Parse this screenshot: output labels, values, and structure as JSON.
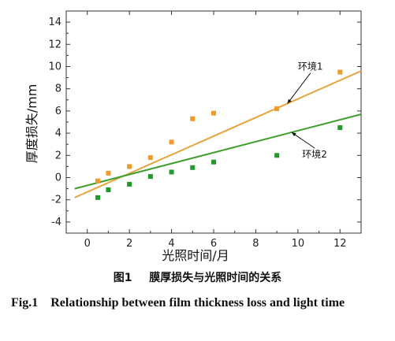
{
  "chart_data": {
    "type": "scatter",
    "xlabel": "光照时间/月",
    "ylabel": "厚度损失/mm",
    "xlim": [
      -1,
      13
    ],
    "ylim": [
      -5,
      15
    ],
    "xticks": [
      0,
      2,
      4,
      6,
      8,
      10,
      12
    ],
    "yticks": [
      -4,
      -2,
      0,
      2,
      4,
      6,
      8,
      10,
      12,
      14
    ],
    "grid": false,
    "series": [
      {
        "name": "环境1",
        "color": "#f29a27",
        "line_color": "#e8a33a",
        "x": [
          0.5,
          1,
          2,
          3,
          4,
          5,
          6,
          9,
          12
        ],
        "y": [
          -0.3,
          0.4,
          1.0,
          1.8,
          3.2,
          5.3,
          5.8,
          6.2,
          9.5
        ],
        "fit": [
          [
            -0.6,
            -1.8
          ],
          [
            13,
            9.6
          ]
        ],
        "label_x": 10.0,
        "label_y": 9.7
      },
      {
        "name": "环境2",
        "color": "#1f9a2b",
        "line_color": "#3f9f2c",
        "x": [
          0.5,
          1,
          2,
          3,
          4,
          5,
          6,
          9,
          12
        ],
        "y": [
          -1.8,
          -1.1,
          -0.6,
          0.1,
          0.5,
          0.9,
          1.4,
          2.0,
          4.5
        ],
        "fit": [
          [
            -0.6,
            -1.0
          ],
          [
            13,
            5.7
          ]
        ],
        "label_x": 10.2,
        "label_y": 1.8
      }
    ]
  },
  "caption": {
    "cn_label": "图1",
    "cn_text": "膜厚损失与光照时间的关系",
    "en_label": "Fig.1",
    "en_text": "Relationship between film thickness loss and light time"
  }
}
